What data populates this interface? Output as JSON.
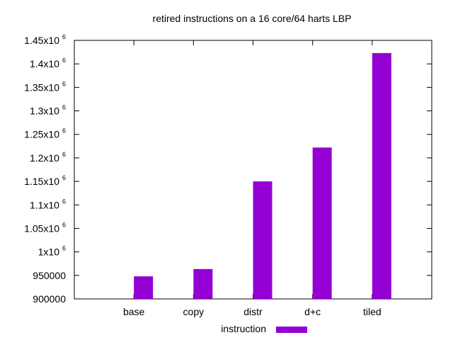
{
  "chart_data": {
    "type": "bar",
    "title": "retired instructions on a 16 core/64 harts LBP",
    "xlabel": "",
    "ylabel": "",
    "categories": [
      "base",
      "copy",
      "distr",
      "d+c",
      "tiled"
    ],
    "series": [
      {
        "name": "instruction",
        "values": [
          948000,
          963500,
          1150000,
          1222000,
          1423000
        ],
        "color": "#9400d3"
      }
    ],
    "ylim": [
      900000,
      1450000
    ],
    "y_ticks": [
      {
        "value": 900000,
        "mantissa": "900000",
        "exp": ""
      },
      {
        "value": 950000,
        "mantissa": "950000",
        "exp": ""
      },
      {
        "value": 1000000,
        "mantissa": "1x10",
        "exp": "6"
      },
      {
        "value": 1050000,
        "mantissa": "1.05x10",
        "exp": "6"
      },
      {
        "value": 1100000,
        "mantissa": "1.1x10",
        "exp": "6"
      },
      {
        "value": 1150000,
        "mantissa": "1.15x10",
        "exp": "6"
      },
      {
        "value": 1200000,
        "mantissa": "1.2x10",
        "exp": "6"
      },
      {
        "value": 1250000,
        "mantissa": "1.25x10",
        "exp": "6"
      },
      {
        "value": 1300000,
        "mantissa": "1.3x10",
        "exp": "6"
      },
      {
        "value": 1350000,
        "mantissa": "1.35x10",
        "exp": "6"
      },
      {
        "value": 1400000,
        "mantissa": "1.4x10",
        "exp": "6"
      },
      {
        "value": 1450000,
        "mantissa": "1.45x10",
        "exp": "6"
      }
    ],
    "grid": false,
    "legend_position": "bottom-center"
  }
}
